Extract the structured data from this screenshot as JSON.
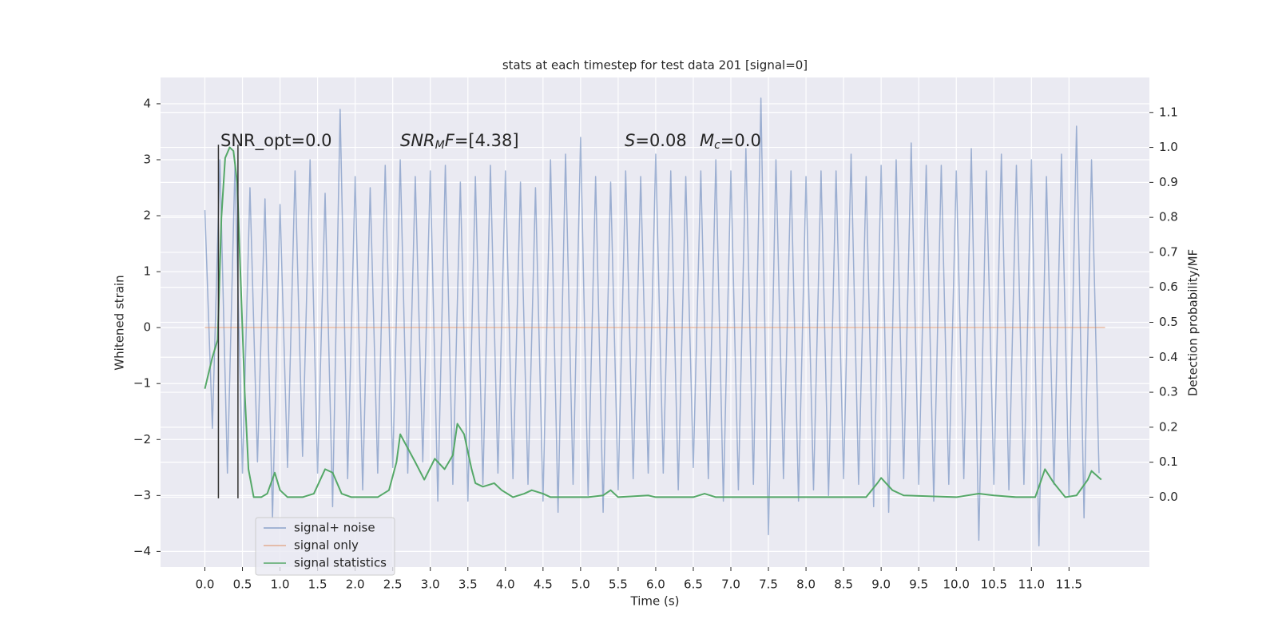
{
  "chart_data": {
    "type": "line",
    "title": "stats at each timestep for test data 201 [signal=0]",
    "xlabel": "Time (s)",
    "ylabel": "Whitened strain",
    "y2label": "Detection probability/MF",
    "grid": true,
    "legend": "lower left",
    "xlim": [
      -0.59,
      12.57
    ],
    "ylim": [
      -4.28,
      4.47
    ],
    "y2lim": [
      -0.2,
      1.2
    ],
    "xticks": [
      {
        "value": 0,
        "label": "0.0"
      },
      0.5,
      {
        "value": 1,
        "label": "1.0"
      },
      1.5,
      {
        "value": 2,
        "label": "2.0"
      },
      2.5,
      {
        "value": 3,
        "label": "3.0"
      },
      3.5,
      {
        "value": 4,
        "label": "4.0"
      },
      4.5,
      {
        "value": 5,
        "label": "5.0"
      },
      5.5,
      {
        "value": 6,
        "label": "6.0"
      },
      6.5,
      {
        "value": 7,
        "label": "7.0"
      },
      7.5,
      {
        "value": 8,
        "label": "8.0"
      },
      8.5,
      {
        "value": 9,
        "label": "9.0"
      },
      9.5,
      {
        "value": 10,
        "label": "10.0"
      },
      10.5,
      {
        "value": 11,
        "label": "11.0"
      },
      11.5
    ],
    "yticks": [
      {
        "value": -4,
        "label": "−4"
      },
      {
        "value": -3,
        "label": "−3"
      },
      {
        "value": -2,
        "label": "−2"
      },
      {
        "value": -1,
        "label": "−1"
      },
      0,
      1,
      2,
      3,
      4
    ],
    "y2ticks": [
      {
        "value": 0,
        "label": "0.0"
      },
      0.1,
      0.2,
      0.3,
      0.4,
      0.5,
      0.6,
      0.7,
      0.8,
      0.9,
      {
        "value": 1,
        "label": "1.0"
      },
      1.1
    ],
    "annotations": [
      [
        "SNR_opt=0.0"
      ],
      [
        "SNR",
        "M",
        "F",
        "=[4.38]"
      ],
      [
        "S",
        "=0.08"
      ],
      [
        "M",
        "c",
        "=0.0"
      ]
    ],
    "vlines": {
      "x": [
        0.18,
        0.44
      ],
      "ymin": -3.05,
      "ymax": 3.27,
      "color": "#333333"
    },
    "series": [
      {
        "name": "signal+ noise",
        "color": "#4c72b0",
        "axis": "y",
        "x": [
          0,
          0.1,
          0.2,
          0.3,
          0.4,
          0.5,
          0.6,
          0.7,
          0.8,
          0.9,
          1,
          1.1,
          1.2,
          1.3,
          1.4,
          1.5,
          1.6,
          1.7,
          1.8,
          1.9,
          2,
          2.1,
          2.2,
          2.3,
          2.4,
          2.5,
          2.6,
          2.7,
          2.8,
          2.9,
          3,
          3.1,
          3.2,
          3.3,
          3.4,
          3.5,
          3.6,
          3.7,
          3.8,
          3.9,
          4,
          4.1,
          4.2,
          4.3,
          4.4,
          4.5,
          4.6,
          4.7,
          4.8,
          4.9,
          5,
          5.1,
          5.2,
          5.3,
          5.4,
          5.5,
          5.6,
          5.7,
          5.8,
          5.9,
          6,
          6.1,
          6.2,
          6.3,
          6.4,
          6.5,
          6.6,
          6.7,
          6.8,
          6.9,
          7,
          7.1,
          7.2,
          7.3,
          7.4,
          7.5,
          7.6,
          7.7,
          7.8,
          7.9,
          8,
          8.1,
          8.2,
          8.3,
          8.4,
          8.5,
          8.6,
          8.7,
          8.8,
          8.9,
          9,
          9.1,
          9.2,
          9.3,
          9.4,
          9.5,
          9.6,
          9.7,
          9.8,
          9.9,
          10,
          10.1,
          10.2,
          10.3,
          10.4,
          10.5,
          10.6,
          10.7,
          10.8,
          10.9,
          11,
          11.1,
          11.2,
          11.3,
          11.4,
          11.5,
          11.6,
          11.7,
          11.8,
          11.9
        ],
        "values": [
          2.1,
          -1.8,
          3.0,
          -2.6,
          2.9,
          -2.6,
          2.5,
          -2.4,
          2.3,
          -3.4,
          2.2,
          -2.5,
          2.8,
          -2.3,
          3.0,
          -2.6,
          2.4,
          -3.2,
          3.9,
          -2.7,
          2.7,
          -2.9,
          2.5,
          -2.6,
          2.9,
          -2.5,
          3.0,
          -2.6,
          2.7,
          -2.4,
          2.8,
          -3.1,
          2.9,
          -2.8,
          2.6,
          -3.1,
          2.7,
          -2.8,
          2.9,
          -2.6,
          2.8,
          -2.7,
          2.6,
          -2.8,
          2.5,
          -3.1,
          3.0,
          -3.3,
          3.1,
          -2.8,
          3.4,
          -3.0,
          2.7,
          -3.3,
          2.6,
          -2.9,
          2.8,
          -2.7,
          2.7,
          -2.6,
          3.1,
          -2.6,
          2.8,
          -2.9,
          2.7,
          -2.5,
          2.8,
          -2.7,
          3.0,
          -3.1,
          2.8,
          -2.9,
          3.2,
          -2.8,
          4.1,
          -3.7,
          3.0,
          -2.7,
          2.8,
          -3.1,
          2.7,
          -2.9,
          2.8,
          -3.0,
          2.8,
          -2.7,
          3.1,
          -2.8,
          2.7,
          -3.2,
          2.9,
          -3.3,
          3.0,
          -2.7,
          3.3,
          -2.8,
          2.9,
          -3.1,
          2.9,
          -2.8,
          2.8,
          -2.7,
          3.2,
          -3.8,
          2.8,
          -2.8,
          3.1,
          -2.9,
          2.9,
          -2.8,
          3.0,
          -3.9,
          2.7,
          -2.8,
          3.1,
          -3.0,
          3.6,
          -3.4,
          3.0,
          -2.6
        ]
      },
      {
        "name": "signal only",
        "color": "#dd8452",
        "axis": "y",
        "x": [
          0,
          11.98
        ],
        "values": [
          0,
          0
        ]
      },
      {
        "name": "signal statistics",
        "color": "#55a868",
        "axis": "y2",
        "x": [
          0,
          0.1,
          0.17,
          0.22,
          0.27,
          0.33,
          0.38,
          0.43,
          0.48,
          0.53,
          0.58,
          0.65,
          0.75,
          0.83,
          0.93,
          1.0,
          1.1,
          1.3,
          1.45,
          1.6,
          1.7,
          1.82,
          1.95,
          2.3,
          2.45,
          2.55,
          2.6,
          2.8,
          2.92,
          3.06,
          3.19,
          3.3,
          3.36,
          3.45,
          3.55,
          3.6,
          3.7,
          3.85,
          3.95,
          4.1,
          4.25,
          4.35,
          4.5,
          4.6,
          5.1,
          5.3,
          5.4,
          5.5,
          5.9,
          6.0,
          6.5,
          6.65,
          6.8,
          8.8,
          8.95,
          9.0,
          9.15,
          9.3,
          10.0,
          10.3,
          10.5,
          10.8,
          11.05,
          11.1,
          11.18,
          11.3,
          11.45,
          11.6,
          11.75,
          11.8,
          11.93
        ],
        "values": [
          0.31,
          0.4,
          0.45,
          0.8,
          0.97,
          1.0,
          0.99,
          0.9,
          0.6,
          0.3,
          0.08,
          0.0,
          0.0,
          0.01,
          0.07,
          0.02,
          0.0,
          0.0,
          0.01,
          0.08,
          0.07,
          0.01,
          0.0,
          0.0,
          0.02,
          0.1,
          0.18,
          0.1,
          0.05,
          0.11,
          0.08,
          0.12,
          0.21,
          0.18,
          0.08,
          0.04,
          0.03,
          0.04,
          0.02,
          0.0,
          0.01,
          0.02,
          0.01,
          0.0,
          0.0,
          0.005,
          0.02,
          0.0,
          0.005,
          0.0,
          0.0,
          0.01,
          0.0,
          0.0,
          0.04,
          0.055,
          0.02,
          0.005,
          0.0,
          0.01,
          0.005,
          0.0,
          0.0,
          0.03,
          0.08,
          0.04,
          0.0,
          0.005,
          0.05,
          0.075,
          0.05
        ]
      }
    ]
  }
}
